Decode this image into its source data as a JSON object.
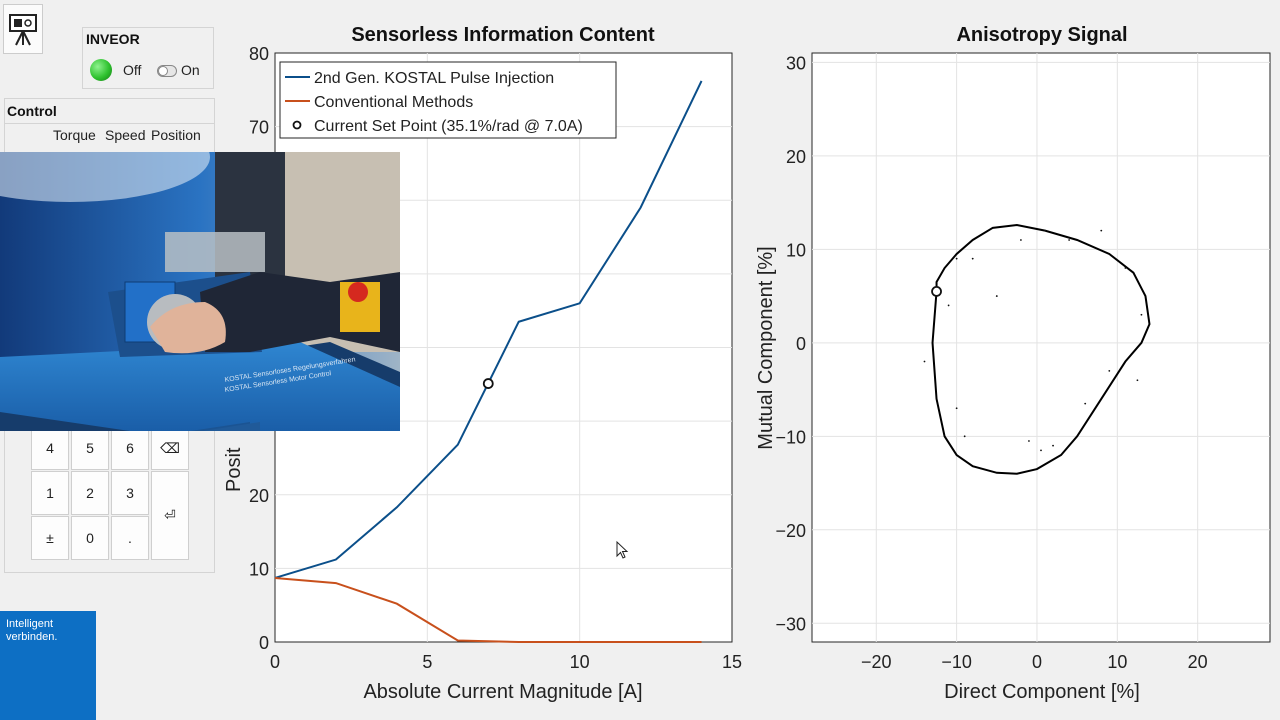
{
  "inveor": {
    "title": "INVEOR",
    "off_label": "Off",
    "on_label": "On",
    "status_color": "#2fc22f"
  },
  "control": {
    "title": "Control",
    "modes": [
      "Torque",
      "Speed",
      "Position"
    ]
  },
  "keypad": {
    "keys": [
      "4",
      "5",
      "6",
      "⌫",
      "1",
      "2",
      "3",
      "⏎",
      "±",
      "0",
      "."
    ]
  },
  "photo": {
    "caption_line1": "KOSTAL Sensorloses Regelungsverfahren",
    "caption_line2": "KOSTAL Sensorless Motor Control"
  },
  "corner_tile": {
    "line1": "Intelligent",
    "line2": "verbinden.",
    "color": "#0d6fc4"
  },
  "colors": {
    "pulse_injection": "#0b4f8a",
    "conventional": "#c8501c",
    "ellipse": "#000000"
  },
  "chart_data": [
    {
      "type": "line",
      "title": "Sensorless Information Content",
      "xlabel": "Absolute Current Magnitude [A]",
      "ylabel": "Posit",
      "xlim": [
        0,
        15
      ],
      "ylim": [
        0,
        80
      ],
      "xticks": [
        "0",
        "5",
        "10",
        "15"
      ],
      "yticks": [
        "0",
        "10",
        "20",
        "70",
        "80"
      ],
      "grid": true,
      "legend_position": "top-left",
      "legend": [
        "2nd Gen. KOSTAL Pulse Injection",
        "Conventional Methods",
        "Current Set Point (35.1%/rad @ 7.0A)"
      ],
      "series": [
        {
          "name": "2nd Gen. KOSTAL Pulse Injection",
          "x": [
            0,
            2,
            4,
            6,
            8,
            10,
            12,
            14
          ],
          "values": [
            8.7,
            11.2,
            18.3,
            26.8,
            43.5,
            46,
            59,
            76.2
          ]
        },
        {
          "name": "Conventional Methods",
          "x": [
            0,
            2,
            4,
            6,
            8,
            10,
            12,
            14
          ],
          "values": [
            8.7,
            8,
            5.2,
            0.2,
            0,
            0,
            0,
            0
          ]
        }
      ],
      "marker": {
        "name": "Current Set Point (35.1%/rad @ 7.0A)",
        "x": 7,
        "y": 35.1
      }
    },
    {
      "type": "scatter",
      "title": "Anisotropy Signal",
      "xlabel": "Direct Component [%]",
      "ylabel": "Mutual Component [%]",
      "xlim": [
        -28,
        29
      ],
      "ylim": [
        -32,
        31
      ],
      "xticks": [
        "−20",
        "−10",
        "0",
        "10",
        "20"
      ],
      "yticks": [
        "−30",
        "−20",
        "−10",
        "0",
        "10",
        "20",
        "30"
      ],
      "grid": true,
      "curve": {
        "x": [
          -12.5,
          -13,
          -12.5,
          -11.5,
          -10,
          -8,
          -5,
          -2.5,
          0,
          3,
          5,
          8,
          11,
          13,
          14,
          13.5,
          12,
          9,
          5,
          1,
          -2.5,
          -5.5,
          -8,
          -10,
          -11.5,
          -12.5,
          -12.5
        ],
        "y": [
          5.5,
          0,
          -6,
          -10,
          -12,
          -13.2,
          -13.9,
          -14,
          -13.5,
          -12,
          -10,
          -6,
          -2,
          0,
          2,
          5,
          7.5,
          9.5,
          11,
          12,
          12.6,
          12.3,
          11,
          9.5,
          8,
          6.5,
          5.5
        ]
      },
      "scatter": {
        "x": [
          -10,
          1,
          -8,
          -2,
          4,
          11,
          13,
          12.5,
          2,
          6,
          -9,
          -14,
          -11,
          -10,
          -1,
          0.5,
          8,
          -5,
          9
        ],
        "y": [
          9,
          12,
          9,
          11,
          11,
          8,
          3,
          -4,
          -11,
          -6.5,
          -10,
          -2,
          4,
          -7,
          -10.5,
          -11.5,
          12,
          5,
          -3
        ]
      },
      "marker": {
        "x": -12.5,
        "y": 5.5
      }
    }
  ]
}
